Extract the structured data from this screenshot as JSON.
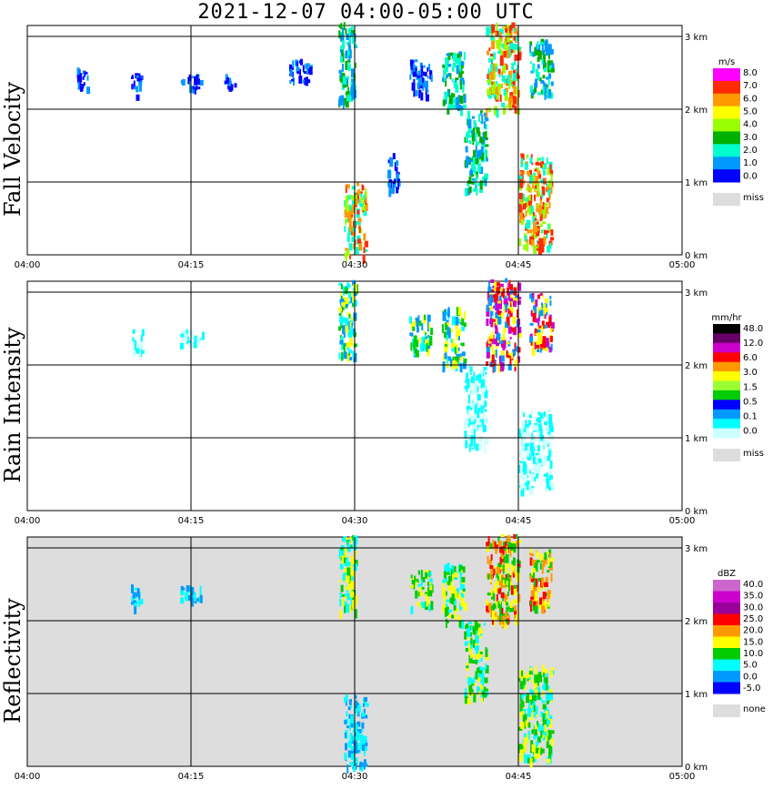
{
  "title": "2021-12-07   04:00-05:00 UTC",
  "chart_data": [
    {
      "type": "heatmap",
      "ylabel": "Fall Velocity",
      "x_ticks": [
        "04:00",
        "04:15",
        "04:30",
        "04:45",
        "05:00"
      ],
      "y_ticks": [
        "0 km",
        "1 km",
        "2 km",
        "3 km"
      ],
      "background": "#ffffff",
      "legend": {
        "unit": "m/s",
        "labels": [
          "8.0",
          "7.0",
          "6.0",
          "5.0",
          "4.0",
          "3.0",
          "2.0",
          "1.0",
          "0.0"
        ],
        "colors": [
          "#ff00ff",
          "#ff2a00",
          "#ff9900",
          "#ffff00",
          "#99ff00",
          "#00b000",
          "#00ffcc",
          "#0099ff",
          "#0000ff"
        ],
        "miss_label": "miss",
        "miss_color": "#dddddd"
      },
      "features": [
        {
          "x": [
            4.5,
            5.5
          ],
          "y": [
            2.3,
            2.6
          ],
          "v": "low"
        },
        {
          "x": [
            9.5,
            10.5
          ],
          "y": [
            2.2,
            2.5
          ],
          "v": "low"
        },
        {
          "x": [
            14,
            16
          ],
          "y": [
            2.3,
            2.5
          ],
          "v": "low"
        },
        {
          "x": [
            18,
            19
          ],
          "y": [
            2.3,
            2.5
          ],
          "v": "low"
        },
        {
          "x": [
            24,
            26
          ],
          "y": [
            2.4,
            2.7
          ],
          "v": "low"
        },
        {
          "x": [
            28.5,
            30
          ],
          "y": [
            2.1,
            3.2
          ],
          "v": "mid"
        },
        {
          "x": [
            33,
            34
          ],
          "y": [
            0.9,
            1.4
          ],
          "v": "low"
        },
        {
          "x": [
            35,
            37
          ],
          "y": [
            2.2,
            2.7
          ],
          "v": "low"
        },
        {
          "x": [
            38,
            40
          ],
          "y": [
            2.0,
            2.8
          ],
          "v": "mid"
        },
        {
          "x": [
            40,
            42
          ],
          "y": [
            0.9,
            2.0
          ],
          "v": "mid"
        },
        {
          "x": [
            42,
            45
          ],
          "y": [
            2.0,
            3.2
          ],
          "v": "high"
        },
        {
          "x": [
            45,
            48
          ],
          "y": [
            0.1,
            1.4
          ],
          "v": "high"
        },
        {
          "x": [
            46,
            48
          ],
          "y": [
            2.2,
            3.0
          ],
          "v": "mid"
        },
        {
          "x": [
            29,
            31
          ],
          "y": [
            0.0,
            1.0
          ],
          "v": "high"
        }
      ]
    },
    {
      "type": "heatmap",
      "ylabel": "Rain Intensity",
      "x_ticks": [
        "04:00",
        "04:15",
        "04:30",
        "04:45",
        "05:00"
      ],
      "y_ticks": [
        "0 km",
        "1 km",
        "2 km",
        "3 km"
      ],
      "background": "#ffffff",
      "legend": {
        "unit": "mm/hr",
        "labels": [
          "48.0",
          "12.0",
          "6.0",
          "3.0",
          "1.5",
          "0.5",
          "0.1",
          "0.0"
        ],
        "colors": [
          "#000000",
          "#660066",
          "#cc00cc",
          "#ff0000",
          "#ff9900",
          "#ffff00",
          "#99ff33",
          "#00cc00",
          "#0000ff",
          "#0099ff",
          "#00ffff",
          "#ccffff"
        ],
        "miss_label": "miss",
        "miss_color": "#dddddd"
      },
      "features": [
        {
          "x": [
            9.5,
            10.5
          ],
          "y": [
            2.2,
            2.5
          ],
          "v": "low"
        },
        {
          "x": [
            14,
            16
          ],
          "y": [
            2.3,
            2.5
          ],
          "v": "low"
        },
        {
          "x": [
            28.5,
            30
          ],
          "y": [
            2.1,
            3.2
          ],
          "v": "mid"
        },
        {
          "x": [
            35,
            37
          ],
          "y": [
            2.2,
            2.7
          ],
          "v": "mid"
        },
        {
          "x": [
            38,
            40
          ],
          "y": [
            2.0,
            2.8
          ],
          "v": "mid"
        },
        {
          "x": [
            40,
            42
          ],
          "y": [
            0.9,
            2.0
          ],
          "v": "low"
        },
        {
          "x": [
            42,
            45
          ],
          "y": [
            2.0,
            3.2
          ],
          "v": "high"
        },
        {
          "x": [
            45,
            48
          ],
          "y": [
            0.3,
            1.4
          ],
          "v": "low"
        },
        {
          "x": [
            46,
            48
          ],
          "y": [
            2.2,
            3.0
          ],
          "v": "high"
        }
      ]
    },
    {
      "type": "heatmap",
      "ylabel": "Reflectivity",
      "x_ticks": [
        "04:00",
        "04:15",
        "04:30",
        "04:45",
        "05:00"
      ],
      "y_ticks": [
        "0 km",
        "1 km",
        "2 km",
        "3 km"
      ],
      "background": "#dddddd",
      "legend": {
        "unit": "dBZ",
        "labels": [
          "40.0",
          "35.0",
          "30.0",
          "25.0",
          "20.0",
          "15.0",
          "10.0",
          "5.0",
          "0.0",
          "-5.0"
        ],
        "colors": [
          "#cc66cc",
          "#cc00cc",
          "#990099",
          "#ff0000",
          "#ff9900",
          "#ffff00",
          "#00cc00",
          "#00ffff",
          "#0099ff",
          "#0000ff"
        ],
        "miss_label": "none",
        "miss_color": "#dddddd"
      },
      "features": [
        {
          "x": [
            9.5,
            10.5
          ],
          "y": [
            2.2,
            2.5
          ],
          "v": "low"
        },
        {
          "x": [
            14,
            16
          ],
          "y": [
            2.3,
            2.5
          ],
          "v": "low"
        },
        {
          "x": [
            28.5,
            30
          ],
          "y": [
            2.1,
            3.2
          ],
          "v": "mid"
        },
        {
          "x": [
            29,
            31
          ],
          "y": [
            0.0,
            1.0
          ],
          "v": "low"
        },
        {
          "x": [
            35,
            37
          ],
          "y": [
            2.2,
            2.7
          ],
          "v": "mid"
        },
        {
          "x": [
            38,
            40
          ],
          "y": [
            2.0,
            2.8
          ],
          "v": "mid"
        },
        {
          "x": [
            40,
            42
          ],
          "y": [
            0.9,
            2.0
          ],
          "v": "mid"
        },
        {
          "x": [
            42,
            45
          ],
          "y": [
            2.0,
            3.2
          ],
          "v": "high"
        },
        {
          "x": [
            45,
            48
          ],
          "y": [
            0.1,
            1.4
          ],
          "v": "mid"
        },
        {
          "x": [
            46,
            48
          ],
          "y": [
            2.2,
            3.0
          ],
          "v": "high"
        }
      ]
    }
  ]
}
